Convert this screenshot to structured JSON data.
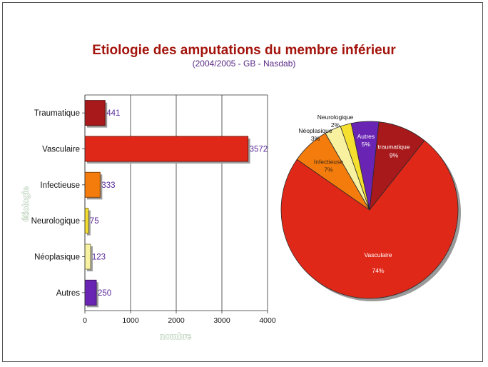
{
  "slide": {
    "title": "Etiologie des amputations du membre inférieur",
    "subtitle": "(2004/2005 - GB - Nasdab)"
  },
  "colors": {
    "title": "#a3140c",
    "subtitle": "#5a2a86",
    "value_labels": "#5a2a9a",
    "axis_titles": "#8fb48f",
    "traumatique": "#a8191b",
    "vasculaire": "#e02818",
    "infectieuse": "#f47c0c",
    "neurologique": "#f5e030",
    "neoplasique": "#f8f2a0",
    "autres": "#6a24b4"
  },
  "chart_data": [
    {
      "type": "bar",
      "orientation": "horizontal",
      "categories": [
        "Traumatique",
        "Vasculaire",
        "Infectieuse",
        "Neurologique",
        "Néoplasique",
        "Autres"
      ],
      "values": [
        441,
        3572,
        333,
        75,
        123,
        250
      ],
      "value_labels": [
        "441",
        "3572",
        "333",
        "75",
        "123",
        "250"
      ],
      "xlabel": "nombre",
      "ylabel": "étiologie",
      "xlim": [
        0,
        4000
      ],
      "xticks": [
        "0",
        "1000",
        "2000",
        "3000",
        "4000"
      ],
      "grid": true,
      "bar_colors": [
        "#a8191b",
        "#e02818",
        "#f47c0c",
        "#f5e030",
        "#f8f2a0",
        "#6a24b4"
      ]
    },
    {
      "type": "pie",
      "slices": [
        {
          "key": "traumatique",
          "name": "traumatique",
          "percent_label": "9%",
          "value": 9,
          "color": "#a8191b",
          "text_color": "#ffffff"
        },
        {
          "key": "vasculaire",
          "name": "Vasculaire",
          "percent_label": "74%",
          "value": 74,
          "color": "#e02818",
          "text_color": "#ffffff"
        },
        {
          "key": "infectieuse",
          "name": "Infectieuse",
          "percent_label": "7%",
          "value": 7,
          "color": "#f47c0c",
          "text_color": "#3a2a1a"
        },
        {
          "key": "neoplasique",
          "name": "Néoplasique",
          "percent_label": "3%",
          "value": 3,
          "color": "#f8f2a0",
          "text_color": "#111111"
        },
        {
          "key": "neurologique",
          "name": "Neurologique",
          "percent_label": "2%",
          "value": 2,
          "color": "#f5e030",
          "text_color": "#111111"
        },
        {
          "key": "autres",
          "name": "Autres",
          "percent_label": "5%",
          "value": 5,
          "color": "#6a24b4",
          "text_color": "#ffffff"
        }
      ]
    }
  ]
}
